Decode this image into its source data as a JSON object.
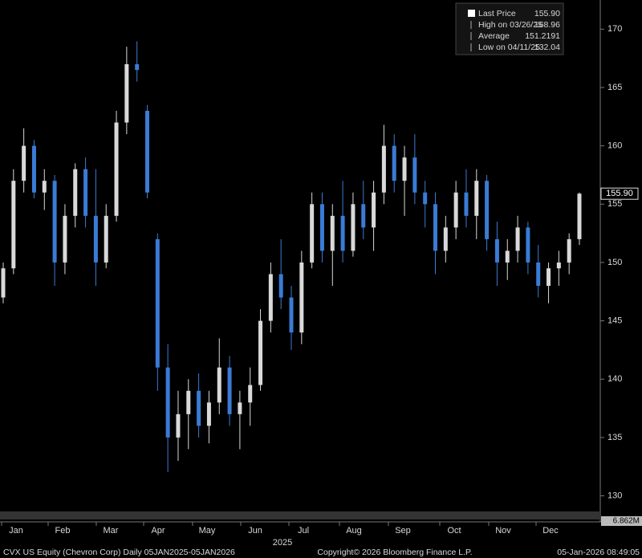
{
  "chart_data": {
    "type": "candlestick",
    "ylim": [
      128.8,
      172.5
    ],
    "yticks": [
      130,
      135,
      140,
      145,
      150,
      155,
      160,
      165,
      170
    ],
    "month_labels": [
      "Jan",
      "Feb",
      "Mar",
      "Apr",
      "May",
      "Jun",
      "Jul",
      "Aug",
      "Sep",
      "Oct",
      "Nov",
      "Dec"
    ],
    "year_label": "2025",
    "up_color": "#d9d9d9",
    "down_color": "#3a7bd5",
    "ohlc": [
      [
        147,
        150,
        146.5,
        149.5
      ],
      [
        149.5,
        158,
        149,
        157
      ],
      [
        157,
        161.5,
        156,
        160
      ],
      [
        160,
        160.5,
        155.5,
        156
      ],
      [
        156,
        158,
        154.5,
        157
      ],
      [
        157,
        157.5,
        148,
        150
      ],
      [
        150,
        155,
        149,
        154
      ],
      [
        154,
        158.5,
        153,
        158
      ],
      [
        158,
        159,
        153,
        154
      ],
      [
        154,
        158,
        148,
        150
      ],
      [
        150,
        155,
        149.5,
        154
      ],
      [
        154,
        163,
        153.5,
        162
      ],
      [
        162,
        168.5,
        161,
        167
      ],
      [
        167,
        168.96,
        165.5,
        166.5
      ],
      [
        163,
        163.5,
        155.5,
        156
      ],
      [
        152,
        152.5,
        139,
        141
      ],
      [
        141,
        143,
        132.04,
        135
      ],
      [
        135,
        139,
        133,
        137
      ],
      [
        137,
        140,
        134,
        139
      ],
      [
        139,
        140.5,
        135,
        136
      ],
      [
        136,
        139,
        134.5,
        138
      ],
      [
        138,
        143.5,
        137,
        141
      ],
      [
        141,
        142,
        136,
        137
      ],
      [
        137,
        139,
        134,
        138
      ],
      [
        138,
        141,
        136,
        139.5
      ],
      [
        139.5,
        146,
        139,
        145
      ],
      [
        145,
        150,
        144,
        149
      ],
      [
        149,
        152,
        146,
        147
      ],
      [
        147,
        148,
        142.5,
        144
      ],
      [
        144,
        151,
        143,
        150
      ],
      [
        150,
        156,
        149.5,
        155
      ],
      [
        155,
        156,
        150,
        151
      ],
      [
        151,
        155,
        148,
        154
      ],
      [
        154,
        157,
        150,
        151
      ],
      [
        151,
        156,
        150.5,
        155
      ],
      [
        155,
        157,
        152,
        153
      ],
      [
        153,
        157,
        151,
        156
      ],
      [
        156,
        161.8,
        155,
        160
      ],
      [
        160,
        161,
        156,
        157
      ],
      [
        157,
        160,
        154,
        159
      ],
      [
        159,
        161,
        155,
        156
      ],
      [
        156,
        157,
        153,
        155
      ],
      [
        155,
        156,
        149,
        151
      ],
      [
        151,
        154,
        150,
        153
      ],
      [
        153,
        157,
        152,
        156
      ],
      [
        156,
        158,
        153,
        154
      ],
      [
        154,
        158,
        152,
        157
      ],
      [
        157,
        157.5,
        151,
        152
      ],
      [
        152,
        153.5,
        148,
        150
      ],
      [
        150,
        152,
        148.5,
        151
      ],
      [
        151,
        154,
        150,
        153
      ],
      [
        153,
        153.5,
        149,
        150
      ],
      [
        150,
        151.5,
        147,
        148
      ],
      [
        148,
        150,
        146.5,
        149.5
      ],
      [
        149.5,
        151,
        148,
        150
      ],
      [
        150,
        152.5,
        149,
        152
      ],
      [
        152,
        156,
        151.5,
        155.9
      ]
    ],
    "stats": [
      {
        "name": "Last Price",
        "value": 155.9,
        "label": "155.90"
      },
      {
        "name": "High on 03/26/25",
        "value": 168.96
      },
      {
        "name": "Average",
        "value": 151.2191
      },
      {
        "name": "Low on 04/11/25",
        "value": 132.04
      }
    ],
    "volume_label": "6.862M",
    "footer": {
      "ticker": "CVX US Equity (Chevron Corp) Daily 05JAN2025-05JAN2026",
      "copyright": "Copyright© 2026 Bloomberg Finance L.P.",
      "timestamp": "05-Jan-2026 08:49:05"
    }
  }
}
